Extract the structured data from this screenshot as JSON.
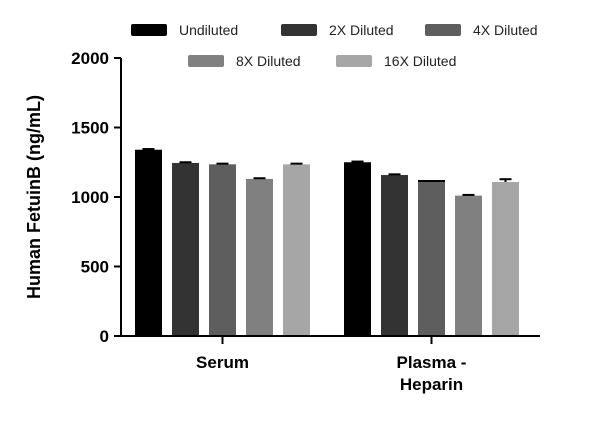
{
  "chart_data": {
    "type": "bar",
    "title": "",
    "xlabel": "",
    "ylabel": "Human FetuinB (ng/mL)",
    "ylim": [
      0,
      2000
    ],
    "yticks": [
      0,
      500,
      1000,
      1500,
      2000
    ],
    "categories": [
      "Serum",
      "Plasma - Heparin"
    ],
    "category_lines": [
      [
        "Serum"
      ],
      [
        "Plasma -",
        "Heparin"
      ]
    ],
    "legend_position": "top",
    "grid": false,
    "series": [
      {
        "name": "Undiluted",
        "color": "#000000",
        "values": [
          1340,
          1250
        ],
        "errors": [
          5,
          5
        ]
      },
      {
        "name": "2X Diluted",
        "color": "#333333",
        "values": [
          1245,
          1158
        ],
        "errors": [
          5,
          5
        ]
      },
      {
        "name": "4X Diluted",
        "color": "#5e5e5e",
        "values": [
          1235,
          1115
        ],
        "errors": [
          5,
          0
        ]
      },
      {
        "name": "8X Diluted",
        "color": "#808080",
        "values": [
          1130,
          1010
        ],
        "errors": [
          5,
          5
        ]
      },
      {
        "name": "16X Diluted",
        "color": "#a6a6a6",
        "values": [
          1235,
          1108
        ],
        "errors": [
          5,
          20
        ]
      }
    ]
  }
}
